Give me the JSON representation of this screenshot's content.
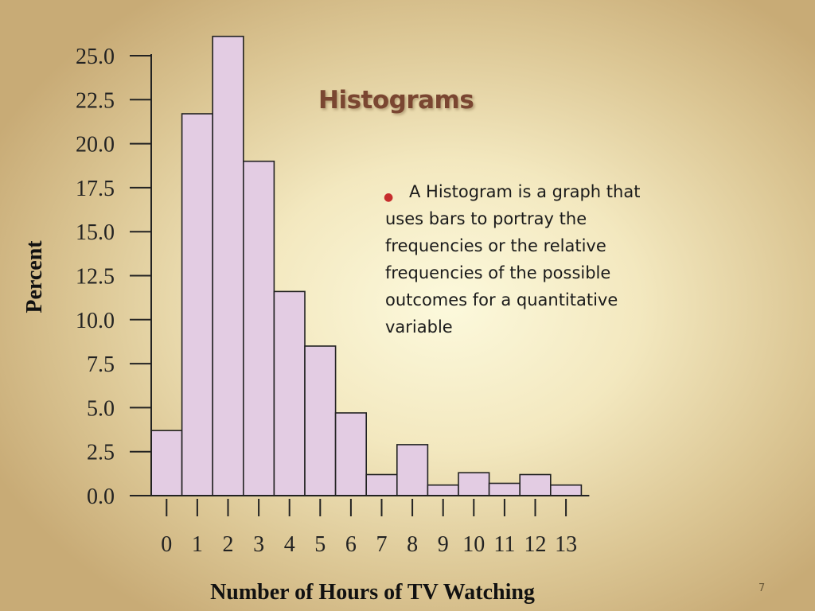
{
  "slide": {
    "title": "Histograms",
    "bullet": "A Histogram is a graph that uses bars to portray the frequencies or the relative frequencies of the possible outcomes for a quantitative variable",
    "page_number": "7"
  },
  "colors": {
    "bar_fill": "#e3cce3",
    "bar_stroke": "#222222",
    "title_color": "#7a4631",
    "bullet_color": "#c62d2d"
  },
  "chart_data": {
    "type": "bar",
    "xlabel": "Number of Hours of TV Watching",
    "ylabel": "Percent",
    "ylim": [
      0,
      25
    ],
    "yticks": [
      "0.0",
      "2.5",
      "5.0",
      "7.5",
      "10.0",
      "12.5",
      "15.0",
      "17.5",
      "20.0",
      "22.5",
      "25.0"
    ],
    "categories": [
      "0",
      "1",
      "2",
      "3",
      "4",
      "5",
      "6",
      "7",
      "8",
      "9",
      "10",
      "11",
      "12",
      "13"
    ],
    "values": [
      3.7,
      21.7,
      26.1,
      19.0,
      11.6,
      8.5,
      4.7,
      1.2,
      2.9,
      0.6,
      1.3,
      0.7,
      1.2,
      0.6
    ],
    "grid": false,
    "legend": "none"
  }
}
